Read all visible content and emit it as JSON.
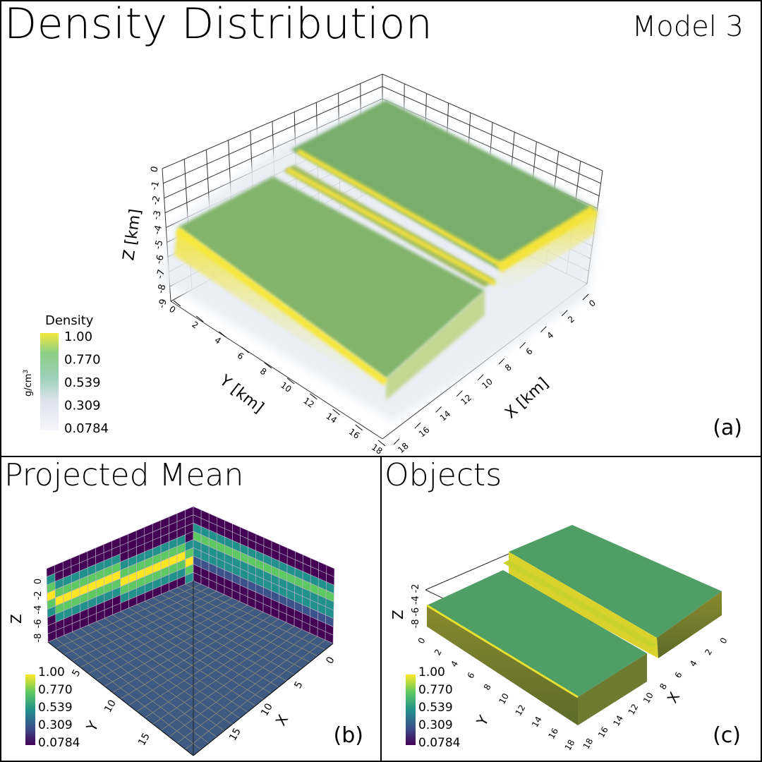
{
  "chart_data": [
    {
      "panel": "a",
      "type": "heatmap",
      "render": "3d volume",
      "title": "Density Distribution",
      "subtitle": "Model 3",
      "panel_label": "(a)",
      "xlabel": "X [km]",
      "ylabel": "Y [km]",
      "zlabel": "Z [km]",
      "x_ticks": [
        "0",
        "2",
        "4",
        "6",
        "8",
        "10",
        "12",
        "14",
        "16",
        "18"
      ],
      "y_ticks": [
        "0",
        "2",
        "4",
        "6",
        "8",
        "10",
        "12",
        "14",
        "16",
        "18"
      ],
      "z_ticks": [
        "-9",
        "-8",
        "-7",
        "-6",
        "-5",
        "-4",
        "-3",
        "-2",
        "-1",
        "0"
      ],
      "xlim": [
        0,
        18
      ],
      "ylim": [
        0,
        18
      ],
      "zlim": [
        -9,
        0
      ],
      "colorbar": {
        "title": "Density",
        "unit": "g/cm",
        "unit_sup": "3",
        "ticks": [
          "1.00",
          "0.770",
          "0.539",
          "0.309",
          "0.0784"
        ],
        "range": [
          0.0784,
          1.0
        ]
      }
    },
    {
      "panel": "b",
      "type": "heatmap",
      "render": "projected mean planes",
      "title": "Projected Mean",
      "panel_label": "(b)",
      "xlabel": "X",
      "ylabel": "Y",
      "zlabel": "Z",
      "x_ticks": [
        "0",
        "5",
        "10",
        "15"
      ],
      "y_ticks": [
        "5",
        "10",
        "15"
      ],
      "z_ticks": [
        "-8",
        "-6",
        "-4",
        "-2",
        "0"
      ],
      "colorbar": {
        "ticks": [
          "1.00",
          "0.770",
          "0.539",
          "0.309",
          "0.0784"
        ],
        "range": [
          0.0784,
          1.0
        ]
      }
    },
    {
      "panel": "c",
      "type": "heatmap",
      "render": "3d objects",
      "title": "Objects",
      "panel_label": "(c)",
      "xlabel": "X",
      "ylabel": "Y",
      "zlabel": "Z",
      "x_ticks": [
        "0",
        "2",
        "4",
        "6",
        "8",
        "10",
        "12",
        "14",
        "16",
        "18"
      ],
      "y_ticks": [
        "0",
        "2",
        "4",
        "6",
        "8",
        "10",
        "12",
        "14",
        "16",
        "18"
      ],
      "z_ticks": [
        "-8",
        "-6",
        "-4",
        "-2"
      ],
      "colorbar": {
        "ticks": [
          "1.00",
          "0.770",
          "0.539",
          "0.309",
          "0.0784"
        ],
        "range": [
          0.0784,
          1.0
        ]
      }
    }
  ],
  "colors": {
    "viridis_top": "#fde725",
    "viridis_upper": "#5ec962",
    "viridis_mid": "#21918c",
    "viridis_lower": "#3b528b",
    "viridis_bottom": "#440154",
    "volume_body": "#7faf6c",
    "volume_edge": "#f2e43c",
    "object_body": "#4f9e66",
    "object_side": "#6f7a2c",
    "projection_floor": "#3e5a82",
    "projection_wall": "#2f1b4e"
  }
}
